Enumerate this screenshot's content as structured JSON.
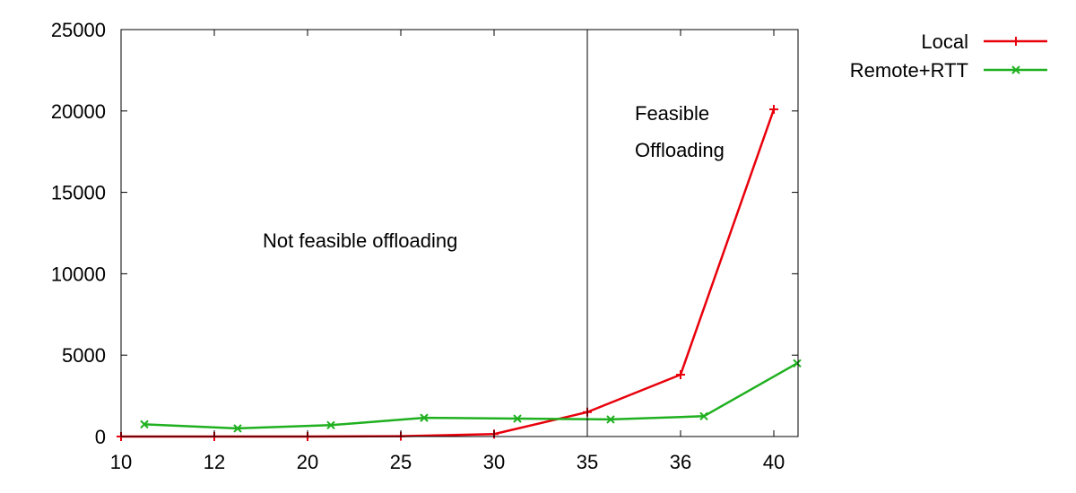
{
  "chart_data": {
    "type": "line",
    "categories": [
      "10",
      "12",
      "20",
      "25",
      "30",
      "35",
      "36",
      "40"
    ],
    "ylim": [
      0,
      25000
    ],
    "yticks": [
      "0",
      "5000",
      "10000",
      "15000",
      "20000",
      "25000"
    ],
    "ytick_values": [
      0,
      5000,
      10000,
      15000,
      20000,
      25000
    ],
    "grid": false,
    "legend_position": "top-right-outside",
    "series": [
      {
        "name": "Local",
        "color": "#e8000b",
        "marker": "plus",
        "x": [
          0,
          1,
          2,
          3,
          4,
          5,
          6,
          7
        ],
        "values": [
          0,
          0,
          0,
          20,
          150,
          1500,
          3800,
          20100
        ]
      },
      {
        "name": "Remote+RTT",
        "color": "#1fb01f",
        "marker": "cross",
        "x": [
          0.25,
          1.25,
          2.25,
          3.25,
          4.25,
          5.25,
          6.25,
          7.25
        ],
        "values": [
          750,
          500,
          700,
          1150,
          1100,
          1050,
          1250,
          4500
        ]
      }
    ],
    "divider_at_category": "35",
    "annotations": {
      "left": "Not feasible offloading",
      "right_line1": "Feasible",
      "right_line2": "Offloading"
    }
  }
}
